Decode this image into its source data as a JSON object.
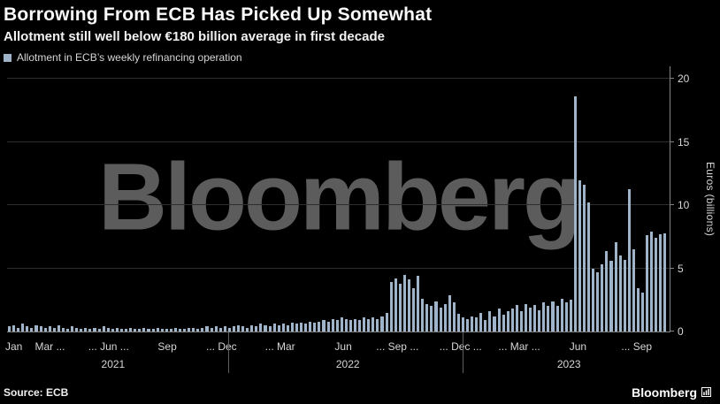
{
  "header": {
    "title": "Borrowing From ECB Has Picked Up Somewhat",
    "subtitle": "Allotment still well below €180 billion average in first decade",
    "legend_label": "Allotment in ECB’s weekly refinancing operation"
  },
  "footer": {
    "source": "Source: ECB",
    "brand": "Bloomberg"
  },
  "colors": {
    "bar": "#9fb4c8",
    "background": "#000000",
    "grid": "#2e2e2e",
    "axis": "#848484",
    "watermark": "#5c5c5c"
  },
  "chart_data": {
    "type": "bar",
    "title": "Borrowing From ECB Has Picked Up Somewhat",
    "subtitle": "Allotment still well below €180 billion average in first decade",
    "legend": [
      "Allotment in ECB’s weekly refinancing operation"
    ],
    "legend_position": "top-left",
    "watermark": "Bloomberg",
    "ylabel": "Euros (billions)",
    "ylim": [
      0,
      20
    ],
    "yticks": [
      0,
      5,
      10,
      15,
      20
    ],
    "grid": "horizontal",
    "x_unit": "week",
    "x_range": "Jan 2021 - Nov 2023",
    "values": [
      0.4,
      0.5,
      0.3,
      0.6,
      0.4,
      0.3,
      0.5,
      0.4,
      0.3,
      0.4,
      0.3,
      0.5,
      0.3,
      0.2,
      0.4,
      0.3,
      0.2,
      0.3,
      0.2,
      0.3,
      0.2,
      0.4,
      0.3,
      0.2,
      0.3,
      0.2,
      0.2,
      0.3,
      0.2,
      0.2,
      0.3,
      0.2,
      0.2,
      0.3,
      0.2,
      0.2,
      0.2,
      0.3,
      0.2,
      0.2,
      0.3,
      0.3,
      0.2,
      0.3,
      0.4,
      0.3,
      0.4,
      0.3,
      0.4,
      0.3,
      0.4,
      0.5,
      0.4,
      0.3,
      0.5,
      0.4,
      0.6,
      0.5,
      0.4,
      0.6,
      0.5,
      0.6,
      0.5,
      0.7,
      0.6,
      0.7,
      0.6,
      0.8,
      0.7,
      0.8,
      0.9,
      0.8,
      1.0,
      0.9,
      1.1,
      1.0,
      0.9,
      1.0,
      0.9,
      1.1,
      1.0,
      1.1,
      1.0,
      1.2,
      1.5,
      3.9,
      4.2,
      3.8,
      4.5,
      4.1,
      3.4,
      4.4,
      2.6,
      2.2,
      2.0,
      2.4,
      1.9,
      2.2,
      2.9,
      2.3,
      1.4,
      1.1,
      1.0,
      1.2,
      1.1,
      1.5,
      0.9,
      1.6,
      1.2,
      1.8,
      1.3,
      1.6,
      1.8,
      2.1,
      1.6,
      2.2,
      1.9,
      2.1,
      1.7,
      2.3,
      2.0,
      2.4,
      2.0,
      2.6,
      2.3,
      2.5,
      18.6,
      12.0,
      11.6,
      10.2,
      5.0,
      4.7,
      5.3,
      6.4,
      5.6,
      7.1,
      6.0,
      5.7,
      11.3,
      6.5,
      3.4,
      3.1,
      7.6,
      7.9,
      7.4,
      7.7,
      7.8
    ],
    "xticks": [
      {
        "label": "Jan",
        "week": 1
      },
      {
        "label": "Mar ...",
        "week": 9
      },
      {
        "label": "... Jun ...",
        "week": 22
      },
      {
        "label": "Sep",
        "week": 35
      },
      {
        "label": "... Dec",
        "week": 47
      },
      {
        "label": "... Mar",
        "week": 60
      },
      {
        "label": "Jun",
        "week": 74
      },
      {
        "label": "... Sep ...",
        "week": 86
      },
      {
        "label": "... Dec ...",
        "week": 100
      },
      {
        "label": "... Mar ...",
        "week": 113
      },
      {
        "label": "Jun",
        "week": 126
      },
      {
        "label": "... Sep",
        "week": 139
      }
    ],
    "year_labels": [
      {
        "label": "2021",
        "week": 23
      },
      {
        "label": "2022",
        "week": 75
      },
      {
        "label": "2023",
        "week": 124
      }
    ],
    "year_separators": [
      49,
      101
    ]
  }
}
